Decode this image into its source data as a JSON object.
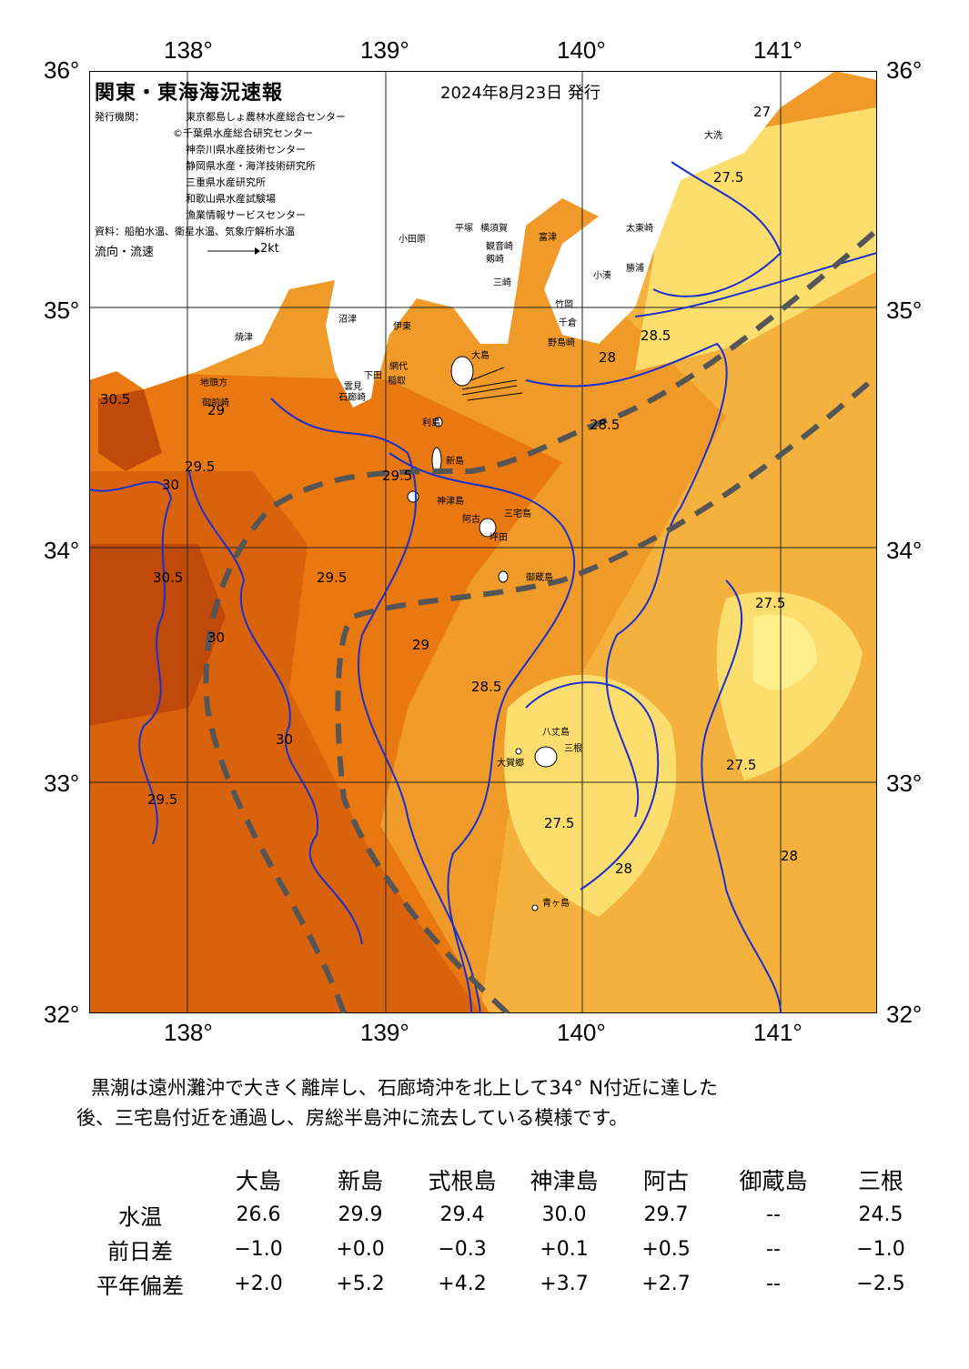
{
  "header": {
    "title": "関東・東海海況速報",
    "date": "2024年8月23日 発行",
    "issuer_label": "発行機関：",
    "issuers": [
      "東京都島しょ農林水産総合センター",
      "©千葉県水産総合研究センター",
      "神奈川県水産技術センター",
      "静岡県水産・海洋技術研究所",
      "三重県水産研究所",
      "和歌山県水産試験場",
      "漁業情報サービスセンター"
    ],
    "source": "資料：船舶水温、衛星水温、気象庁解析水温",
    "flow_label": "流向・流速",
    "flow_scale": "2kt"
  },
  "axes": {
    "lon_labels": [
      "138°",
      "139°",
      "140°",
      "141°"
    ],
    "lat_labels": [
      "36°",
      "35°",
      "34°",
      "33°",
      "32°"
    ]
  },
  "map": {
    "colors": {
      "land": "#ffffff",
      "t_over_30": "#c04a0a",
      "t_30": "#d9620d",
      "t_29_5": "#e8780f",
      "t_29": "#f09a2a",
      "t_28_5": "#f4b13e",
      "t_28": "#f8c855",
      "t_27_5": "#fbde6e",
      "t_27": "#fdf08c",
      "contour": "#1a2fd0",
      "kuroshio_axis": "#555555"
    },
    "place_names": [
      "大島",
      "利島",
      "新島",
      "神津島",
      "三宅島",
      "坪田",
      "阿古",
      "御蔵島",
      "八丈島",
      "三根",
      "大賀郷",
      "青ヶ島",
      "小田原",
      "平塚",
      "横須賀",
      "観音崎",
      "剱崎",
      "三崎",
      "富津",
      "竹岡",
      "千倉",
      "野島崎",
      "太東崎",
      "大洗",
      "勝浦",
      "小湊",
      "沼津",
      "伊東",
      "網代",
      "稲取",
      "下田",
      "石廊崎",
      "焼津",
      "御前崎",
      "地頭方",
      "雲見"
    ],
    "isotherm_labels": [
      "30.5",
      "30",
      "29.5",
      "29",
      "28.5",
      "28",
      "27.5",
      "27"
    ]
  },
  "summary": [
    "黒潮は遠州灘沖で大きく離岸し、石廊埼沖を北上して34° N付近に達した",
    "後、三宅島付近を通過し、房総半島沖に流去している模様です。"
  ],
  "table": {
    "columns": [
      "大島",
      "新島",
      "式根島",
      "神津島",
      "阿古",
      "御蔵島",
      "三根"
    ],
    "rows": [
      {
        "label": "水温",
        "values": [
          "26.6",
          "29.9",
          "29.4",
          "30.0",
          "29.7",
          "--",
          "24.5"
        ]
      },
      {
        "label": "前日差",
        "values": [
          "−1.0",
          "+0.0",
          "−0.3",
          "+0.1",
          "+0.5",
          "--",
          "−1.0"
        ]
      },
      {
        "label": "平年偏差",
        "values": [
          "+2.0",
          "+5.2",
          "+4.2",
          "+3.7",
          "+2.7",
          "--",
          "−2.5"
        ]
      }
    ]
  }
}
